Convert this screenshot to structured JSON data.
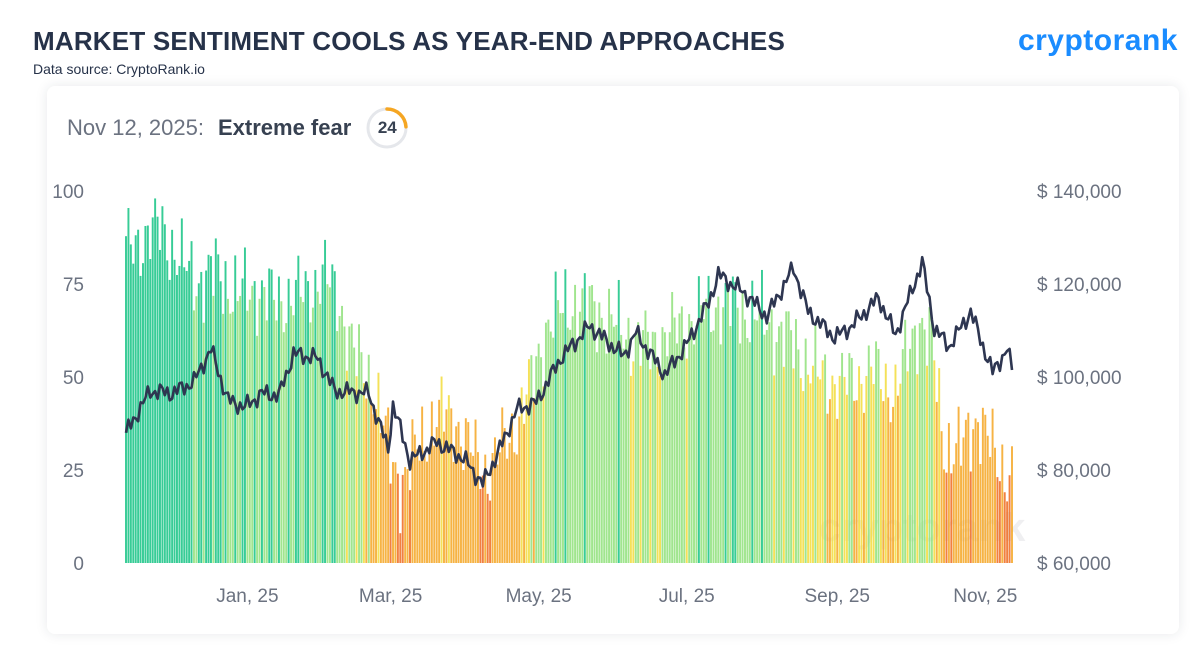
{
  "header": {
    "title": "MARKET SENTIMENT COOLS AS YEAR-END APPROACHES",
    "source": "Data source: CryptoRank.io",
    "logo": "cryptorank",
    "watermark": "cryptorank"
  },
  "headline": {
    "date": "Nov 12, 2025:",
    "label": "Extreme fear",
    "value": 24,
    "value_text": "24"
  },
  "colors": {
    "extreme_greed": "#14c384",
    "greed": "#8fe07a",
    "neutral": "#f2dc3b",
    "fear": "#f5a623",
    "extreme_fear": "#ee6a1e",
    "price_line": "#2e3651",
    "gauge_active": "#f5a623",
    "gauge_track": "#e5e7eb"
  },
  "chart_data": {
    "type": "bar",
    "x_range": [
      "2024-11-12",
      "2025-11-12"
    ],
    "x_tick_labels": [
      {
        "date": "2025-01-01",
        "label": "Jan, 25"
      },
      {
        "date": "2025-03-01",
        "label": "Mar, 25"
      },
      {
        "date": "2025-05-01",
        "label": "May, 25"
      },
      {
        "date": "2025-07-01",
        "label": "Jul, 25"
      },
      {
        "date": "2025-09-01",
        "label": "Sep, 25"
      },
      {
        "date": "2025-11-01",
        "label": "Nov, 25"
      }
    ],
    "y_left": {
      "min": 0,
      "max": 100,
      "ticks": [
        "0",
        "25",
        "50",
        "75",
        "100"
      ]
    },
    "y_right": {
      "min": 60000,
      "max": 140000,
      "ticks": [
        "$ 60,000",
        "$ 80,000",
        "$ 100,000",
        "$ 120,000",
        "$ 140,000"
      ]
    },
    "series": [
      {
        "type": "bar",
        "keypoints": [
          [
            "2024-11-12",
            84
          ],
          [
            "2024-11-20",
            88
          ],
          [
            "2024-11-27",
            90
          ],
          [
            "2024-12-05",
            80
          ],
          [
            "2024-12-12",
            76
          ],
          [
            "2024-12-20",
            78
          ],
          [
            "2024-12-28",
            72
          ],
          [
            "2025-01-05",
            74
          ],
          [
            "2025-01-12",
            70
          ],
          [
            "2025-01-20",
            72
          ],
          [
            "2025-01-25",
            72
          ],
          [
            "2025-02-01",
            78
          ],
          [
            "2025-02-08",
            70
          ],
          [
            "2025-02-15",
            54
          ],
          [
            "2025-02-22",
            48
          ],
          [
            "2025-03-01",
            28
          ],
          [
            "2025-03-05",
            22
          ],
          [
            "2025-03-12",
            30
          ],
          [
            "2025-03-20",
            40
          ],
          [
            "2025-03-28",
            38
          ],
          [
            "2025-04-05",
            28
          ],
          [
            "2025-04-10",
            25
          ],
          [
            "2025-04-20",
            35
          ],
          [
            "2025-04-28",
            48
          ],
          [
            "2025-05-05",
            65
          ],
          [
            "2025-05-15",
            70
          ],
          [
            "2025-05-25",
            68
          ],
          [
            "2025-06-05",
            62
          ],
          [
            "2025-06-15",
            58
          ],
          [
            "2025-06-25",
            62
          ],
          [
            "2025-07-05",
            66
          ],
          [
            "2025-07-15",
            70
          ],
          [
            "2025-07-25",
            68
          ],
          [
            "2025-08-05",
            64
          ],
          [
            "2025-08-15",
            58
          ],
          [
            "2025-08-25",
            50
          ],
          [
            "2025-09-05",
            48
          ],
          [
            "2025-09-15",
            52
          ],
          [
            "2025-09-25",
            46
          ],
          [
            "2025-10-05",
            66
          ],
          [
            "2025-10-10",
            58
          ],
          [
            "2025-10-15",
            32
          ],
          [
            "2025-10-22",
            30
          ],
          [
            "2025-10-29",
            40
          ],
          [
            "2025-11-05",
            28
          ],
          [
            "2025-11-12",
            24
          ]
        ]
      },
      {
        "type": "line",
        "keypoints": [
          [
            "2024-11-12",
            88000
          ],
          [
            "2024-11-22",
            97000
          ],
          [
            "2024-12-01",
            96500
          ],
          [
            "2024-12-10",
            99000
          ],
          [
            "2024-12-17",
            106000
          ],
          [
            "2024-12-24",
            95000
          ],
          [
            "2024-12-31",
            93500
          ],
          [
            "2025-01-07",
            96500
          ],
          [
            "2025-01-14",
            96000
          ],
          [
            "2025-01-20",
            105000
          ],
          [
            "2025-01-30",
            104000
          ],
          [
            "2025-02-06",
            97000
          ],
          [
            "2025-02-20",
            96500
          ],
          [
            "2025-02-28",
            84500
          ],
          [
            "2025-03-02",
            94000
          ],
          [
            "2025-03-09",
            82000
          ],
          [
            "2025-03-20",
            86000
          ],
          [
            "2025-03-31",
            82500
          ],
          [
            "2025-04-08",
            77000
          ],
          [
            "2025-04-15",
            84500
          ],
          [
            "2025-04-22",
            93000
          ],
          [
            "2025-04-30",
            94500
          ],
          [
            "2025-05-10",
            104000
          ],
          [
            "2025-05-22",
            111000
          ],
          [
            "2025-06-05",
            104500
          ],
          [
            "2025-06-10",
            109500
          ],
          [
            "2025-06-22",
            100500
          ],
          [
            "2025-07-01",
            107000
          ],
          [
            "2025-07-10",
            116000
          ],
          [
            "2025-07-14",
            122000
          ],
          [
            "2025-07-25",
            118000
          ],
          [
            "2025-08-03",
            113000
          ],
          [
            "2025-08-14",
            123500
          ],
          [
            "2025-08-20",
            114000
          ],
          [
            "2025-08-31",
            108500
          ],
          [
            "2025-09-07",
            111000
          ],
          [
            "2025-09-18",
            117000
          ],
          [
            "2025-09-25",
            109000
          ],
          [
            "2025-10-06",
            124700
          ],
          [
            "2025-10-11",
            110500
          ],
          [
            "2025-10-17",
            106500
          ],
          [
            "2025-10-26",
            114000
          ],
          [
            "2025-11-04",
            101000
          ],
          [
            "2025-11-10",
            106000
          ],
          [
            "2025-11-12",
            101500
          ]
        ]
      }
    ]
  }
}
